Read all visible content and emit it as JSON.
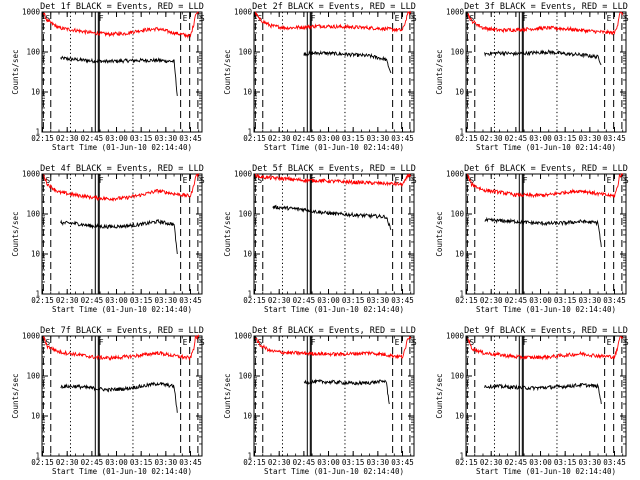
{
  "chart_data": {
    "type": "line",
    "layout": "3x3 grid",
    "y_scale": "log",
    "ylim": [
      1,
      1000
    ],
    "y_ticks": [
      "1",
      "10",
      "100",
      "1000"
    ],
    "ylabel": "Counts/sec",
    "xlabel": "Start Time (01-Jun-10 02:14:40)",
    "x_ticks": [
      "02:15",
      "02:30",
      "02:45",
      "03:00",
      "03:15",
      "03:30",
      "03:45"
    ],
    "xlim": [
      "02:14:40",
      "03:52:00"
    ],
    "markers": [
      {
        "label": "S",
        "time": "02:15:30",
        "style": "dashed"
      },
      {
        "time": "02:20:00",
        "style": "dashed"
      },
      {
        "time": "02:32:00",
        "style": "dotted"
      },
      {
        "label": "F",
        "time": "02:48:00",
        "style": "double"
      },
      {
        "time": "02:49:30",
        "style": "solid"
      },
      {
        "time": "03:10:00",
        "style": "dotted"
      },
      {
        "label": "E",
        "time": "03:39:00",
        "style": "dashed"
      },
      {
        "time": "03:44:30",
        "style": "dashed"
      },
      {
        "label": "S",
        "time": "03:49:30",
        "style": "dashed"
      }
    ],
    "panels": [
      {
        "title": "Det 1f BLACK = Events, RED = LLD",
        "series": [
          {
            "name": "Events",
            "color": "#000000",
            "x": [
              "02:26",
              "02:35",
              "02:45",
              "02:55",
              "03:05",
              "03:15",
              "03:25",
              "03:35",
              "03:37"
            ],
            "y": [
              70,
              65,
              60,
              58,
              60,
              62,
              62,
              58,
              8
            ]
          },
          {
            "name": "LLD",
            "color": "#ff0000",
            "x": [
              "02:15:30",
              "02:18",
              "02:25",
              "02:35",
              "02:45",
              "02:55",
              "03:05",
              "03:15",
              "03:25",
              "03:35",
              "03:45",
              "03:47",
              "03:48",
              "03:50"
            ],
            "y": [
              950,
              600,
              400,
              350,
              300,
              280,
              290,
              350,
              380,
              300,
              250,
              500,
              900,
              950
            ]
          }
        ]
      },
      {
        "title": "Det 2f BLACK = Events, RED = LLD",
        "series": [
          {
            "name": "Events",
            "color": "#000000",
            "x": [
              "02:45",
              "02:55",
              "03:05",
              "03:15",
              "03:25",
              "03:35",
              "03:38"
            ],
            "y": [
              90,
              95,
              90,
              85,
              80,
              65,
              30
            ]
          },
          {
            "name": "LLD",
            "color": "#ff0000",
            "x": [
              "02:15:30",
              "02:18",
              "02:25",
              "02:35",
              "02:45",
              "02:55",
              "03:05",
              "03:15",
              "03:25",
              "03:35",
              "03:45",
              "03:47",
              "03:48",
              "03:50"
            ],
            "y": [
              950,
              650,
              450,
              400,
              420,
              450,
              430,
              420,
              400,
              380,
              350,
              600,
              900,
              950
            ]
          }
        ]
      },
      {
        "title": "Det 3f BLACK = Events, RED = LLD",
        "series": [
          {
            "name": "Events",
            "color": "#000000",
            "x": [
              "02:26",
              "02:35",
              "02:45",
              "02:55",
              "03:05",
              "03:15",
              "03:25",
              "03:35",
              "03:37"
            ],
            "y": [
              90,
              95,
              90,
              95,
              100,
              90,
              85,
              75,
              50
            ]
          },
          {
            "name": "LLD",
            "color": "#ff0000",
            "x": [
              "02:15:30",
              "02:18",
              "02:25",
              "02:35",
              "02:45",
              "02:55",
              "03:05",
              "03:15",
              "03:25",
              "03:35",
              "03:45",
              "03:47",
              "03:48",
              "03:50"
            ],
            "y": [
              950,
              600,
              400,
              350,
              360,
              380,
              400,
              380,
              350,
              320,
              300,
              500,
              900,
              950
            ]
          }
        ]
      },
      {
        "title": "Det 4f BLACK = Events, RED = LLD",
        "series": [
          {
            "name": "Events",
            "color": "#000000",
            "x": [
              "02:26",
              "02:35",
              "02:45",
              "02:55",
              "03:05",
              "03:15",
              "03:25",
              "03:35",
              "03:37"
            ],
            "y": [
              60,
              58,
              50,
              48,
              50,
              55,
              65,
              55,
              10
            ]
          },
          {
            "name": "LLD",
            "color": "#ff0000",
            "x": [
              "02:15:30",
              "02:18",
              "02:25",
              "02:35",
              "02:45",
              "02:55",
              "03:05",
              "03:15",
              "03:25",
              "03:35",
              "03:45",
              "03:47",
              "03:48",
              "03:50"
            ],
            "y": [
              950,
              550,
              350,
              300,
              260,
              240,
              250,
              300,
              380,
              320,
              280,
              500,
              900,
              950
            ]
          }
        ]
      },
      {
        "title": "Det 5f BLACK = Events, RED = LLD",
        "series": [
          {
            "name": "Events",
            "color": "#000000",
            "x": [
              "02:26",
              "02:35",
              "02:45",
              "02:55",
              "03:05",
              "03:15",
              "03:25",
              "03:35",
              "03:38"
            ],
            "y": [
              150,
              140,
              130,
              110,
              100,
              95,
              90,
              85,
              40
            ]
          },
          {
            "name": "LLD",
            "color": "#ff0000",
            "x": [
              "02:15:30",
              "02:18",
              "02:25",
              "02:35",
              "02:45",
              "02:55",
              "03:05",
              "03:15",
              "03:25",
              "03:35",
              "03:45",
              "03:47",
              "03:48",
              "03:50"
            ],
            "y": [
              950,
              850,
              800,
              750,
              700,
              680,
              650,
              620,
              600,
              580,
              550,
              700,
              900,
              950
            ]
          }
        ]
      },
      {
        "title": "Det 6f BLACK = Events, RED = LLD",
        "series": [
          {
            "name": "Events",
            "color": "#000000",
            "x": [
              "02:26",
              "02:35",
              "02:45",
              "02:55",
              "03:05",
              "03:15",
              "03:25",
              "03:35",
              "03:37"
            ],
            "y": [
              70,
              68,
              65,
              60,
              58,
              60,
              65,
              60,
              15
            ]
          },
          {
            "name": "LLD",
            "color": "#ff0000",
            "x": [
              "02:15:30",
              "02:18",
              "02:25",
              "02:35",
              "02:45",
              "02:55",
              "03:05",
              "03:15",
              "03:25",
              "03:35",
              "03:45",
              "03:47",
              "03:48",
              "03:50"
            ],
            "y": [
              950,
              550,
              400,
              350,
              300,
              290,
              300,
              350,
              380,
              320,
              280,
              500,
              900,
              950
            ]
          }
        ]
      },
      {
        "title": "Det 7f BLACK = Events, RED = LLD",
        "series": [
          {
            "name": "Events",
            "color": "#000000",
            "x": [
              "02:26",
              "02:35",
              "02:45",
              "02:55",
              "03:05",
              "03:15",
              "03:25",
              "03:35",
              "03:37"
            ],
            "y": [
              55,
              55,
              50,
              45,
              48,
              55,
              65,
              55,
              12
            ]
          },
          {
            "name": "LLD",
            "color": "#ff0000",
            "x": [
              "02:15:30",
              "02:18",
              "02:25",
              "02:35",
              "02:45",
              "02:55",
              "03:05",
              "03:15",
              "03:25",
              "03:35",
              "03:45",
              "03:47",
              "03:48",
              "03:50"
            ],
            "y": [
              950,
              550,
              400,
              350,
              300,
              280,
              300,
              330,
              380,
              320,
              280,
              500,
              900,
              950
            ]
          }
        ]
      },
      {
        "title": "Det 8f BLACK = Events, RED = LLD",
        "series": [
          {
            "name": "Events",
            "color": "#000000",
            "x": [
              "02:45",
              "02:55",
              "03:05",
              "03:15",
              "03:25",
              "03:35",
              "03:37"
            ],
            "y": [
              70,
              72,
              70,
              65,
              68,
              75,
              20
            ]
          },
          {
            "name": "LLD",
            "color": "#ff0000",
            "x": [
              "02:15:30",
              "02:18",
              "02:25",
              "02:35",
              "02:45",
              "02:55",
              "03:05",
              "03:15",
              "03:25",
              "03:35",
              "03:45",
              "03:47",
              "03:48",
              "03:50"
            ],
            "y": [
              950,
              600,
              420,
              380,
              370,
              360,
              350,
              360,
              380,
              340,
              300,
              500,
              900,
              950
            ]
          }
        ]
      },
      {
        "title": "Det 9f BLACK = Events, RED = LLD",
        "series": [
          {
            "name": "Events",
            "color": "#000000",
            "x": [
              "02:26",
              "02:35",
              "02:45",
              "02:55",
              "03:05",
              "03:15",
              "03:25",
              "03:35",
              "03:37"
            ],
            "y": [
              55,
              55,
              52,
              50,
              52,
              55,
              60,
              55,
              20
            ]
          },
          {
            "name": "LLD",
            "color": "#ff0000",
            "x": [
              "02:15:30",
              "02:18",
              "02:25",
              "02:35",
              "02:45",
              "02:55",
              "03:05",
              "03:15",
              "03:25",
              "03:35",
              "03:45",
              "03:47",
              "03:48",
              "03:50"
            ],
            "y": [
              950,
              500,
              380,
              340,
              300,
              290,
              300,
              330,
              360,
              320,
              300,
              500,
              900,
              950
            ]
          }
        ]
      }
    ]
  }
}
